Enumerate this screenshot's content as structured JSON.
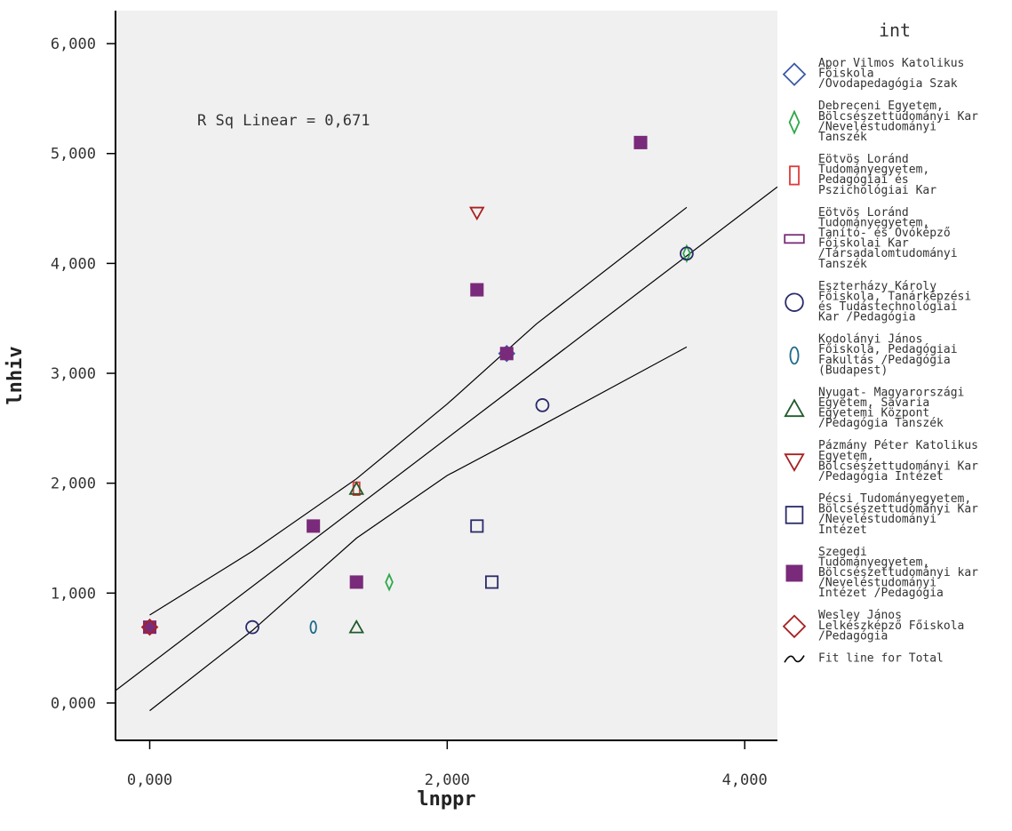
{
  "chart_data": {
    "type": "scatter",
    "xlabel": "lnppr",
    "ylabel": "lnhiv",
    "xlim": [
      -0.23,
      4.22
    ],
    "ylim": [
      -0.34,
      6.3
    ],
    "xticks": [
      0,
      2,
      4
    ],
    "yticks": [
      0,
      1,
      2,
      3,
      4,
      5,
      6
    ],
    "xtick_labels": [
      "0,000",
      "2,000",
      "4,000"
    ],
    "ytick_labels": [
      "0,000",
      "1,000",
      "2,000",
      "3,000",
      "4,000",
      "5,000",
      "6,000"
    ],
    "grid": false,
    "background": "#f0f0f0",
    "annotation": "R Sq Linear = 0,671",
    "legend": {
      "title": "int",
      "placement": "right",
      "entries": [
        {
          "label": "Apor Vilmos Katolikus Főiskola /Óvodapedagógia Szak",
          "lines": [
            "Apor Vilmos Katolikus",
            "Főiskola",
            "/Óvodapedagógia Szak"
          ],
          "marker": "diamond",
          "color": "#3a5aa8",
          "filled": false
        },
        {
          "label": "Debreceni Egyetem, Bölcsészettudományi Kar /Neveléstudományi Tanszék",
          "lines": [
            "Debreceni Egyetem,",
            "Bölcsészettudományi Kar",
            "/Neveléstudományi",
            "Tanszék"
          ],
          "marker": "thin-diamond",
          "color": "#2ea84a",
          "filled": false
        },
        {
          "label": "Eötvös Loránd Tudományegyetem, Pedagógiai és Pszichológiai Kar",
          "lines": [
            "Eötvös Loránd",
            "Tudományegyetem,",
            "Pedagógiai és",
            "Pszichológiai Kar"
          ],
          "marker": "tall-rect",
          "color": "#e03a3a",
          "filled": false
        },
        {
          "label": "Eötvös Loránd Tudományegyetem, Tanító- és Óvóképző Főiskolai Kar /Társadalomtudományi Tanszék",
          "lines": [
            "Eötvös Loránd",
            "Tudományegyetem,",
            "Tanító- és Óvóképző",
            "Főiskolai Kar",
            "/Társadalomtudományi",
            "Tanszék"
          ],
          "marker": "wide-rect",
          "color": "#7a2a7a",
          "filled": false
        },
        {
          "label": "Eszterházy Károly Főiskola, Tanárképzési és Tudástechnológiai Kar /Pedagógia",
          "lines": [
            "Eszterházy Károly",
            "Főiskola, Tanárképzési",
            "és Tudástechnológiai",
            "Kar /Pedagógia"
          ],
          "marker": "circle",
          "color": "#2a2a6a",
          "filled": false
        },
        {
          "label": "Kodolányi János Főiskola, Pedagógiai Fakultás /Pedagógia (Budapest)",
          "lines": [
            "Kodolányi János",
            "Főiskola, Pedagógiai",
            "Fakultás /Pedagógia",
            "(Budapest)"
          ],
          "marker": "ellipse",
          "color": "#1f6a8a",
          "filled": false
        },
        {
          "label": "Nyugat- Magyarországi Egyetem, Savaria Egyetemi Központ /Pedagógia Tanszék",
          "lines": [
            "Nyugat- Magyarországi",
            "Egyetem, Savaria",
            "Egyetemi Központ",
            "/Pedagógia Tanszék"
          ],
          "marker": "triangle-up",
          "color": "#1f5a2a",
          "filled": false
        },
        {
          "label": "Pázmány Péter Katolikus Egyetem, Bölcsészettudományi Kar /Pedagógia Intézet",
          "lines": [
            "Pázmány Péter Katolikus",
            "Egyetem,",
            "Bölcsészettudományi Kar",
            "/Pedagógia Intézet"
          ],
          "marker": "triangle-down",
          "color": "#a82020",
          "filled": false
        },
        {
          "label": "Pécsi Tudományegyetem, Bölcsészettudományi Kar /Neveléstudományi Intézet",
          "lines": [
            "Pécsi Tudományegyetem,",
            "Bölcsészettudományi Kar",
            "/Neveléstudományi",
            "Intézet"
          ],
          "marker": "square",
          "color": "#2a2a6a",
          "filled": false
        },
        {
          "label": "Szegedi Tudományegyetem, Bölcsészettudományi kar /Neveléstudományi Intézet /Pedagógia",
          "lines": [
            "Szegedi",
            "Tudományegyetem,",
            "Bölcsészettudományi kar",
            "/Neveléstudományi",
            "Intézet /Pedagógia"
          ],
          "marker": "square",
          "color": "#7a2a7a",
          "filled": true
        },
        {
          "label": "Wesley János Lelkészképző Főiskola /Pedagógia",
          "lines": [
            "Wesley János",
            "Lelkészképző Főiskola",
            "/Pedagógia"
          ],
          "marker": "diamond",
          "color": "#a82020",
          "filled": false
        },
        {
          "label": "Fit line for Total",
          "lines": [
            "Fit line for Total"
          ],
          "marker": "fit-line",
          "color": "#000000",
          "filled": false
        }
      ]
    },
    "series": [
      {
        "name": "Apor Vilmos Katolikus Főiskola /Óvodapedagógia Szak",
        "marker": "diamond",
        "color": "#3a5aa8",
        "filled": false,
        "points": [
          [
            2.4,
            3.18
          ]
        ]
      },
      {
        "name": "Debreceni Egyetem, Bölcsészettudományi Kar /Neveléstudományi Tanszék",
        "marker": "thin-diamond",
        "color": "#2ea84a",
        "filled": false,
        "points": [
          [
            1.61,
            1.1
          ],
          [
            3.61,
            4.09
          ]
        ]
      },
      {
        "name": "Eötvös Loránd Tudományegyetem, Pedagógiai és Pszichológiai Kar",
        "marker": "tall-rect",
        "color": "#e03a3a",
        "filled": false,
        "points": [
          [
            1.39,
            1.95
          ]
        ]
      },
      {
        "name": "Eötvös Loránd Tudományegyetem, Tanító- és Óvóképző Főiskolai Kar /Társadalomtudományi Tanszék",
        "marker": "wide-rect",
        "color": "#7a2a7a",
        "filled": false,
        "points": []
      },
      {
        "name": "Eszterházy Károly Főiskola, Tanárképzési és Tudástechnológiai Kar /Pedagógia",
        "marker": "circle",
        "color": "#2a2a6a",
        "filled": false,
        "points": [
          [
            0.69,
            0.69
          ],
          [
            2.64,
            2.71
          ],
          [
            3.61,
            4.09
          ]
        ]
      },
      {
        "name": "Kodolányi János Főiskola, Pedagógiai Fakultás /Pedagógia (Budapest)",
        "marker": "ellipse",
        "color": "#1f6a8a",
        "filled": false,
        "points": [
          [
            1.1,
            0.69
          ]
        ]
      },
      {
        "name": "Nyugat- Magyarországi Egyetem, Savaria Egyetemi Központ /Pedagógia Tanszék",
        "marker": "triangle-up",
        "color": "#1f5a2a",
        "filled": false,
        "points": [
          [
            1.39,
            0.69
          ],
          [
            1.39,
            1.95
          ]
        ]
      },
      {
        "name": "Pázmány Péter Katolikus Egyetem, Bölcsészettudományi Kar /Pedagógia Intézet",
        "marker": "triangle-down",
        "color": "#a82020",
        "filled": false,
        "points": [
          [
            2.2,
            4.46
          ]
        ]
      },
      {
        "name": "Pécsi Tudományegyetem, Bölcsészettudományi Kar /Neveléstudományi Intézet",
        "marker": "square",
        "color": "#2a2a6a",
        "filled": false,
        "points": [
          [
            2.2,
            1.61
          ],
          [
            2.3,
            1.1
          ]
        ]
      },
      {
        "name": "Szegedi Tudományegyetem, Bölcsészettudományi kar /Neveléstudományi Intézet /Pedagógia",
        "marker": "square",
        "color": "#7a2a7a",
        "filled": true,
        "points": [
          [
            0.0,
            0.69
          ],
          [
            1.1,
            1.61
          ],
          [
            1.39,
            1.1
          ],
          [
            2.2,
            3.76
          ],
          [
            2.4,
            3.18
          ],
          [
            3.3,
            5.1
          ]
        ]
      },
      {
        "name": "Wesley János Lelkészképző Főiskola /Pedagógia",
        "marker": "diamond",
        "color": "#a82020",
        "filled": false,
        "points": [
          [
            0.0,
            0.69
          ]
        ]
      }
    ],
    "fit_line": {
      "intercept": 0.35,
      "slope": 1.03,
      "x_range": [
        -0.23,
        4.22
      ]
    },
    "confidence_band": {
      "upper": [
        [
          0.0,
          0.8
        ],
        [
          0.69,
          1.38
        ],
        [
          1.39,
          2.04
        ],
        [
          2.0,
          2.72
        ],
        [
          2.6,
          3.45
        ],
        [
          3.61,
          4.51
        ]
      ],
      "lower": [
        [
          0.0,
          -0.07
        ],
        [
          0.69,
          0.66
        ],
        [
          1.39,
          1.5
        ],
        [
          2.0,
          2.07
        ],
        [
          2.6,
          2.5
        ],
        [
          3.61,
          3.24
        ]
      ]
    }
  }
}
